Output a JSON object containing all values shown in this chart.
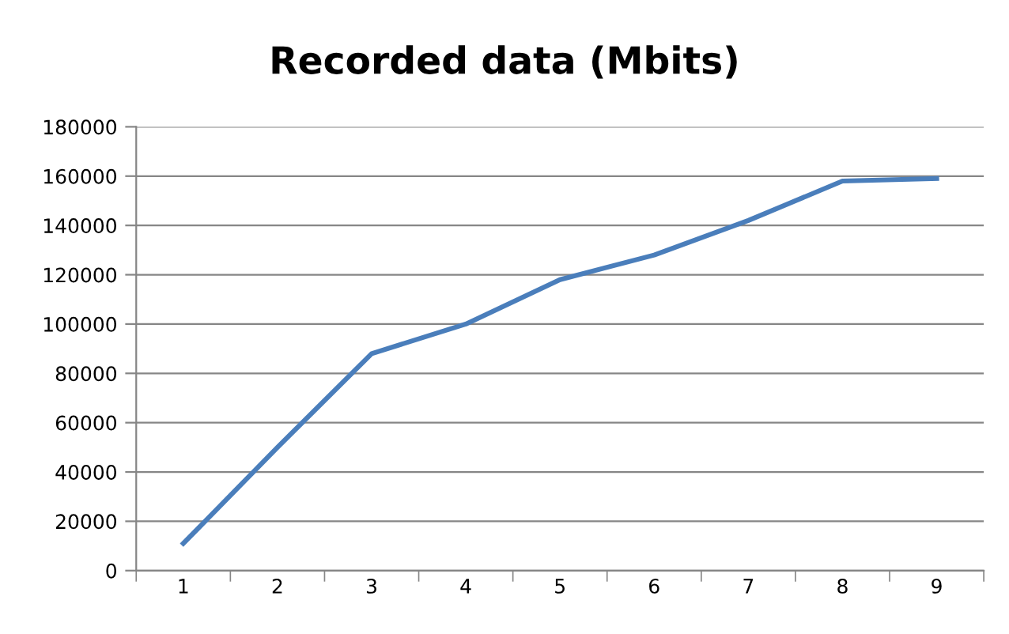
{
  "chart_data": {
    "type": "line",
    "title": "Recorded data (Mbits)",
    "categories": [
      "1",
      "2",
      "3",
      "4",
      "5",
      "6",
      "7",
      "8",
      "9"
    ],
    "values": [
      11000,
      50000,
      88000,
      100000,
      118000,
      128000,
      142000,
      158000,
      159000
    ],
    "color": "#4a7ebb",
    "ylim": [
      0,
      180000
    ],
    "yticks": [
      0,
      20000,
      40000,
      60000,
      80000,
      100000,
      120000,
      140000,
      160000,
      180000
    ],
    "grid": "y",
    "legend": false,
    "marker": "none",
    "line_style": "solid"
  }
}
